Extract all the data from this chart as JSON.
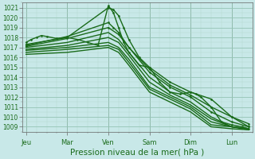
{
  "bg_color": "#c8e8e8",
  "grid_color_major": "#94c4b4",
  "grid_color_minor": "#b4d8cc",
  "line_color": "#1a6b1a",
  "ylim": [
    1008.5,
    1021.5
  ],
  "yticks": [
    1009,
    1010,
    1011,
    1012,
    1013,
    1014,
    1015,
    1016,
    1017,
    1018,
    1019,
    1020,
    1021
  ],
  "xlabel": "Pression niveau de la mer( hPa )",
  "xlabel_fontsize": 7.5,
  "tick_labels": [
    "Jeu",
    "Mar",
    "Ven",
    "Sam",
    "Dim",
    "Lun"
  ],
  "tick_positions": [
    0,
    24,
    48,
    72,
    96,
    120
  ],
  "xlim": [
    -2,
    132
  ],
  "minor_xtick_interval": 6,
  "lines": [
    {
      "x": [
        0,
        3,
        6,
        9,
        12,
        18,
        24,
        30,
        36,
        42,
        48,
        51,
        54,
        57,
        60,
        66,
        72,
        78,
        84,
        90,
        96,
        99,
        102,
        108,
        114,
        120,
        126,
        130
      ],
      "y": [
        1017.5,
        1017.8,
        1018.0,
        1018.2,
        1018.1,
        1017.9,
        1018.0,
        1017.8,
        1017.5,
        1017.2,
        1021.2,
        1020.5,
        1019.0,
        1017.5,
        1016.5,
        1015.2,
        1015.0,
        1013.5,
        1012.5,
        1012.3,
        1012.5,
        1012.3,
        1012.0,
        1011.0,
        1009.5,
        1009.2,
        1009.0,
        1008.8
      ],
      "lw": 1.0,
      "marker": ".",
      "ms": 1.8
    },
    {
      "x": [
        0,
        24,
        48,
        51,
        54,
        57,
        60,
        66,
        72,
        84,
        96,
        108,
        120,
        130
      ],
      "y": [
        1017.3,
        1018.0,
        1021.0,
        1020.8,
        1020.2,
        1019.0,
        1017.8,
        1016.0,
        1015.0,
        1013.5,
        1012.5,
        1011.8,
        1010.0,
        1009.0
      ],
      "lw": 1.0,
      "marker": ".",
      "ms": 1.8
    },
    {
      "x": [
        0,
        24,
        48,
        51,
        54,
        60,
        72,
        84,
        96,
        108,
        120,
        130
      ],
      "y": [
        1017.2,
        1018.1,
        1019.5,
        1019.0,
        1018.5,
        1017.0,
        1014.8,
        1013.2,
        1012.2,
        1011.0,
        1010.0,
        1009.3
      ],
      "lw": 1.0,
      "marker": ".",
      "ms": 1.8
    },
    {
      "x": [
        0,
        24,
        48,
        54,
        60,
        72,
        84,
        96,
        108,
        120,
        130
      ],
      "y": [
        1017.1,
        1017.9,
        1019.0,
        1018.3,
        1017.0,
        1014.5,
        1013.0,
        1012.0,
        1010.5,
        1009.5,
        1009.0
      ],
      "lw": 1.0,
      "marker": ".",
      "ms": 1.8
    },
    {
      "x": [
        0,
        24,
        48,
        54,
        60,
        72,
        84,
        96,
        108,
        120,
        130
      ],
      "y": [
        1017.0,
        1017.5,
        1018.5,
        1017.8,
        1016.5,
        1014.0,
        1012.5,
        1011.5,
        1010.0,
        1009.0,
        1008.7
      ],
      "lw": 1.0,
      "marker": null,
      "ms": 0
    },
    {
      "x": [
        0,
        24,
        48,
        54,
        60,
        72,
        84,
        96,
        108,
        120,
        130
      ],
      "y": [
        1016.8,
        1017.2,
        1018.0,
        1017.5,
        1016.2,
        1013.5,
        1012.2,
        1011.2,
        1009.8,
        1009.0,
        1008.8
      ],
      "lw": 1.0,
      "marker": null,
      "ms": 0
    },
    {
      "x": [
        0,
        24,
        48,
        54,
        60,
        72,
        84,
        96,
        108,
        120,
        130
      ],
      "y": [
        1016.7,
        1017.0,
        1017.5,
        1017.0,
        1015.8,
        1013.0,
        1012.0,
        1011.0,
        1009.5,
        1009.0,
        1008.8
      ],
      "lw": 1.0,
      "marker": null,
      "ms": 0
    },
    {
      "x": [
        0,
        24,
        48,
        54,
        60,
        72,
        84,
        96,
        108,
        120,
        130
      ],
      "y": [
        1016.5,
        1016.8,
        1017.2,
        1016.8,
        1015.5,
        1012.8,
        1011.8,
        1010.8,
        1009.2,
        1009.0,
        1008.8
      ],
      "lw": 1.0,
      "marker": null,
      "ms": 0
    },
    {
      "x": [
        0,
        24,
        48,
        54,
        60,
        72,
        84,
        96,
        108,
        120,
        130
      ],
      "y": [
        1016.3,
        1016.5,
        1017.0,
        1016.5,
        1015.2,
        1012.5,
        1011.5,
        1010.5,
        1009.0,
        1008.8,
        1008.7
      ],
      "lw": 1.0,
      "marker": null,
      "ms": 0
    }
  ]
}
